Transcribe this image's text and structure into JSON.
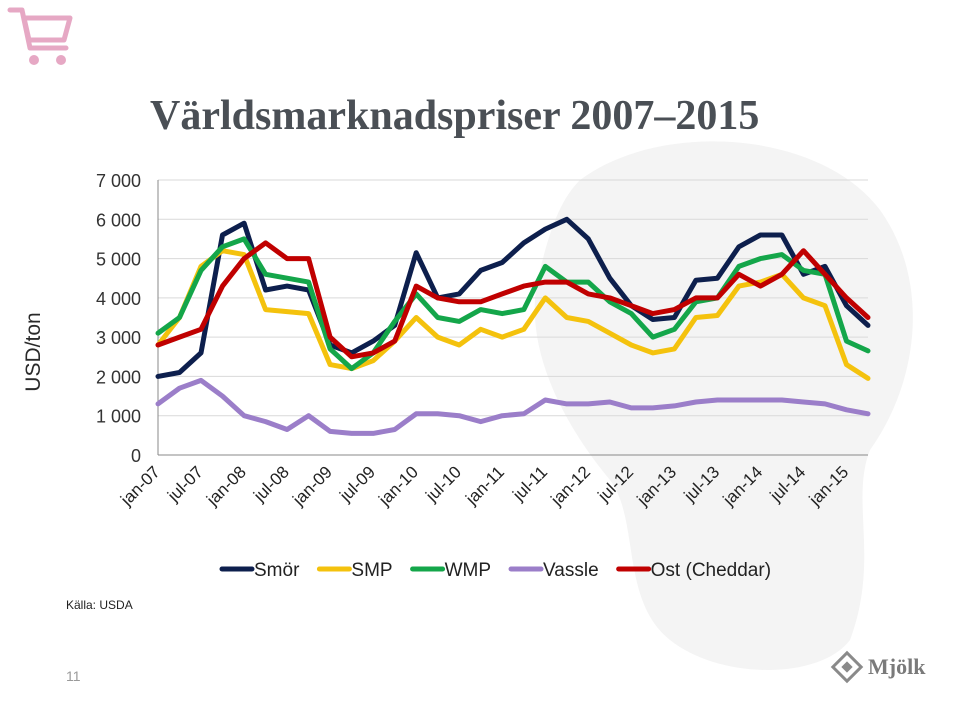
{
  "slide": {
    "title": "Världsmarknadspriser 2007–2015",
    "source": "Källa: USDA",
    "page_number": "11",
    "logo_text": "Mjölk"
  },
  "chart_data": {
    "type": "line",
    "title": "Världsmarknadspriser 2007–2015",
    "xlabel": "",
    "ylabel": "USD/ton",
    "ylim": [
      0,
      7000
    ],
    "yticks": [
      0,
      1000,
      2000,
      3000,
      4000,
      5000,
      6000,
      7000
    ],
    "ytick_labels": [
      "0",
      "1 000",
      "2 000",
      "3 000",
      "4 000",
      "5 000",
      "6 000",
      "7 000"
    ],
    "xtick_labels": [
      "jan-07",
      "jul-07",
      "jan-08",
      "jul-08",
      "jan-09",
      "jul-09",
      "jan-10",
      "jul-10",
      "jan-11",
      "jul-11",
      "jan-12",
      "jul-12",
      "jan-13",
      "jul-13",
      "jan-14",
      "jul-14",
      "jan-15"
    ],
    "grid": "horizontal",
    "legend": "bottom",
    "x": [
      "jan-07",
      "apr-07",
      "jul-07",
      "okt-07",
      "jan-08",
      "apr-08",
      "jul-08",
      "okt-08",
      "jan-09",
      "apr-09",
      "jul-09",
      "okt-09",
      "jan-10",
      "apr-10",
      "jul-10",
      "okt-10",
      "jan-11",
      "apr-11",
      "jul-11",
      "okt-11",
      "jan-12",
      "apr-12",
      "jul-12",
      "okt-12",
      "jan-13",
      "apr-13",
      "jul-13",
      "okt-13",
      "jan-14",
      "apr-14",
      "jul-14",
      "okt-14",
      "jan-15",
      "apr-15"
    ],
    "series": [
      {
        "name": "Smör",
        "color": "#0d1f4d",
        "values": [
          2000,
          2100,
          2600,
          5600,
          5900,
          4200,
          4300,
          4200,
          2800,
          2600,
          2900,
          3300,
          5150,
          4000,
          4100,
          4700,
          4900,
          5400,
          5750,
          6000,
          5500,
          4500,
          3800,
          3450,
          3500,
          4450,
          4500,
          5300,
          5600,
          5600,
          4600,
          4800,
          3800,
          3300
        ]
      },
      {
        "name": "SMP",
        "color": "#f4c20d",
        "values": [
          2800,
          3500,
          4800,
          5200,
          5100,
          3700,
          3650,
          3600,
          2300,
          2200,
          2400,
          2900,
          3500,
          3000,
          2800,
          3200,
          3000,
          3200,
          4000,
          3500,
          3400,
          3100,
          2800,
          2600,
          2700,
          3500,
          3550,
          4300,
          4400,
          4600,
          4000,
          3800,
          2300,
          1950
        ]
      },
      {
        "name": "WMP",
        "color": "#14a64a",
        "values": [
          3100,
          3500,
          4700,
          5300,
          5500,
          4600,
          4500,
          4400,
          2700,
          2200,
          2600,
          3400,
          4100,
          3500,
          3400,
          3700,
          3600,
          3700,
          4800,
          4400,
          4400,
          3900,
          3600,
          3000,
          3200,
          3900,
          4000,
          4800,
          5000,
          5100,
          4700,
          4600,
          2900,
          2650
        ]
      },
      {
        "name": "Vassle",
        "color": "#9b7ec9",
        "values": [
          1300,
          1700,
          1900,
          1500,
          1000,
          850,
          650,
          1000,
          600,
          550,
          550,
          650,
          1050,
          1050,
          1000,
          850,
          1000,
          1050,
          1400,
          1300,
          1300,
          1350,
          1200,
          1200,
          1250,
          1350,
          1400,
          1400,
          1400,
          1400,
          1350,
          1300,
          1150,
          1050
        ]
      },
      {
        "name": "Ost (Cheddar)",
        "color": "#c00000",
        "values": [
          2800,
          3000,
          3200,
          4300,
          5000,
          5400,
          5000,
          5000,
          3000,
          2500,
          2600,
          2900,
          4300,
          4000,
          3900,
          3900,
          4100,
          4300,
          4400,
          4400,
          4100,
          4000,
          3800,
          3600,
          3700,
          4000,
          4000,
          4600,
          4300,
          4600,
          5200,
          4600,
          4000,
          3500
        ]
      }
    ]
  },
  "icons": {
    "cart": "shopping-cart-icon",
    "logo": "mjolk-logo-icon",
    "cart_color": "#e6a8c4"
  }
}
